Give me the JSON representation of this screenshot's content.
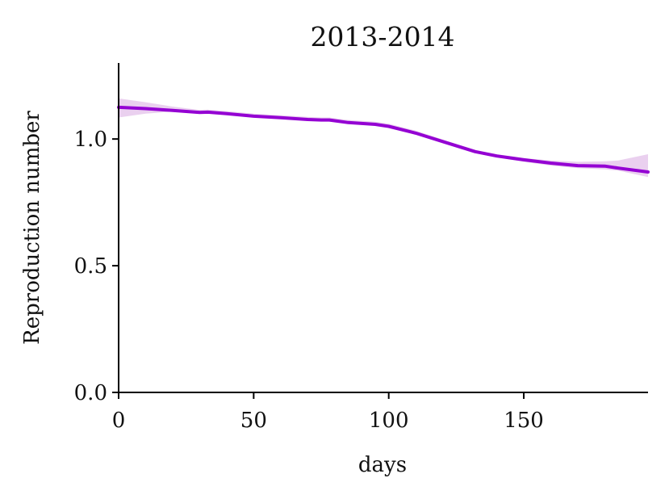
{
  "chart_data": {
    "type": "line",
    "title": "2013-2014",
    "xlabel": "days",
    "ylabel": "Reproduction number",
    "xlim": [
      0,
      196
    ],
    "ylim": [
      0,
      1.3
    ],
    "grid": false,
    "x_ticks": [
      0,
      50,
      100,
      150
    ],
    "x_tick_labels": [
      "0",
      "50",
      "100",
      "150"
    ],
    "y_ticks": [
      0.0,
      0.5,
      1.0
    ],
    "y_tick_labels": [
      "0.0",
      "0.5",
      "1.0"
    ],
    "colors": {
      "line": "#9400d3",
      "band": "#e6c8ec",
      "axes": "#000000"
    },
    "series": [
      {
        "x": [
          0,
          10,
          20,
          30,
          33,
          40,
          50,
          60,
          70,
          75,
          78,
          85,
          95,
          100,
          110,
          120,
          132,
          140,
          150,
          160,
          170,
          180,
          185,
          196
        ],
        "y": [
          1.125,
          1.12,
          1.113,
          1.105,
          1.106,
          1.1,
          1.09,
          1.084,
          1.077,
          1.075,
          1.075,
          1.065,
          1.058,
          1.05,
          1.023,
          0.99,
          0.95,
          0.933,
          0.918,
          0.905,
          0.895,
          0.893,
          0.885,
          0.87
        ],
        "lower": [
          1.085,
          1.1,
          1.108,
          1.1,
          1.101,
          1.095,
          1.085,
          1.079,
          1.072,
          1.07,
          1.07,
          1.06,
          1.053,
          1.045,
          1.018,
          0.985,
          0.945,
          0.928,
          0.91,
          0.895,
          0.885,
          0.88,
          0.875,
          0.85
        ],
        "upper": [
          1.16,
          1.145,
          1.128,
          1.115,
          1.116,
          1.11,
          1.1,
          1.094,
          1.087,
          1.085,
          1.085,
          1.075,
          1.068,
          1.06,
          1.033,
          0.998,
          0.957,
          0.94,
          0.925,
          0.915,
          0.91,
          0.912,
          0.915,
          0.94
        ]
      }
    ]
  }
}
